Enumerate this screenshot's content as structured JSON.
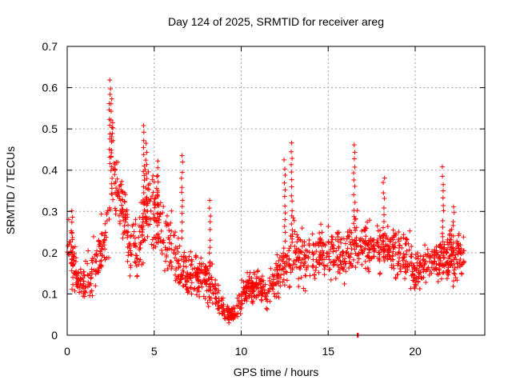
{
  "chart_data": {
    "type": "scatter",
    "title": "Day 124 of 2025, SRMTID for receiver areg",
    "xlabel": "GPS time / hours",
    "ylabel": "SRMTID / TECUs",
    "xlim": [
      0,
      24
    ],
    "ylim": [
      0,
      0.7
    ],
    "x_ticks": [
      0,
      5,
      10,
      15,
      20
    ],
    "x_tick_labels": [
      "0",
      "5",
      "10",
      "15",
      "20"
    ],
    "y_ticks": [
      0,
      0.1,
      0.2,
      0.3,
      0.4,
      0.5,
      0.6,
      0.7
    ],
    "y_tick_labels": [
      "0",
      "0.1",
      "0.2",
      "0.3",
      "0.4",
      "0.5",
      "0.6",
      "0.7"
    ],
    "grid": true,
    "marker": "+",
    "series": [
      {
        "name": "SRMTID",
        "color": "#ff0000",
        "profile_hours": [
          0,
          0.3,
          0.6,
          1.0,
          1.5,
          2.0,
          2.4,
          2.6,
          2.8,
          3.2,
          3.6,
          4.0,
          4.5,
          5.0,
          5.5,
          6.0,
          6.5,
          7.0,
          7.5,
          8.0,
          8.4,
          8.8,
          9.2,
          9.6,
          10.0,
          10.5,
          11.0,
          11.5,
          12.0,
          12.5,
          13.0,
          13.5,
          14.0,
          14.5,
          15.0,
          15.5,
          16.0,
          16.5,
          17.0,
          17.5,
          18.0,
          18.5,
          19.0,
          19.5,
          20.0,
          20.5,
          21.0,
          21.5,
          22.0,
          22.5,
          22.8
        ],
        "profile_median": [
          0.22,
          0.2,
          0.13,
          0.12,
          0.16,
          0.2,
          0.3,
          0.42,
          0.35,
          0.3,
          0.22,
          0.2,
          0.3,
          0.3,
          0.26,
          0.22,
          0.17,
          0.14,
          0.14,
          0.14,
          0.12,
          0.07,
          0.05,
          0.05,
          0.09,
          0.12,
          0.12,
          0.1,
          0.14,
          0.17,
          0.2,
          0.19,
          0.18,
          0.2,
          0.2,
          0.2,
          0.2,
          0.22,
          0.22,
          0.21,
          0.22,
          0.21,
          0.2,
          0.2,
          0.15,
          0.17,
          0.18,
          0.18,
          0.2,
          0.2,
          0.18
        ],
        "profile_spread": [
          0.06,
          0.06,
          0.04,
          0.05,
          0.07,
          0.07,
          0.12,
          0.12,
          0.08,
          0.08,
          0.07,
          0.07,
          0.1,
          0.1,
          0.09,
          0.09,
          0.07,
          0.05,
          0.05,
          0.05,
          0.05,
          0.03,
          0.02,
          0.02,
          0.04,
          0.04,
          0.04,
          0.04,
          0.05,
          0.06,
          0.07,
          0.07,
          0.06,
          0.06,
          0.06,
          0.06,
          0.06,
          0.07,
          0.06,
          0.06,
          0.06,
          0.06,
          0.06,
          0.06,
          0.05,
          0.05,
          0.05,
          0.05,
          0.06,
          0.06,
          0.05
        ],
        "spikes": [
          {
            "x": 0.3,
            "y": 0.31
          },
          {
            "x": 2.45,
            "y": 0.62
          },
          {
            "x": 2.55,
            "y": 0.58
          },
          {
            "x": 4.4,
            "y": 0.51
          },
          {
            "x": 4.55,
            "y": 0.47
          },
          {
            "x": 5.2,
            "y": 0.43
          },
          {
            "x": 6.6,
            "y": 0.44
          },
          {
            "x": 8.2,
            "y": 0.33
          },
          {
            "x": 12.5,
            "y": 0.43
          },
          {
            "x": 12.9,
            "y": 0.47
          },
          {
            "x": 16.5,
            "y": 0.47
          },
          {
            "x": 18.2,
            "y": 0.39
          },
          {
            "x": 21.6,
            "y": 0.41
          },
          {
            "x": 22.2,
            "y": 0.32
          }
        ],
        "outliers": [
          {
            "x": 16.7,
            "y": 0.0
          }
        ],
        "extent_hours": [
          0,
          22.8
        ]
      }
    ]
  }
}
